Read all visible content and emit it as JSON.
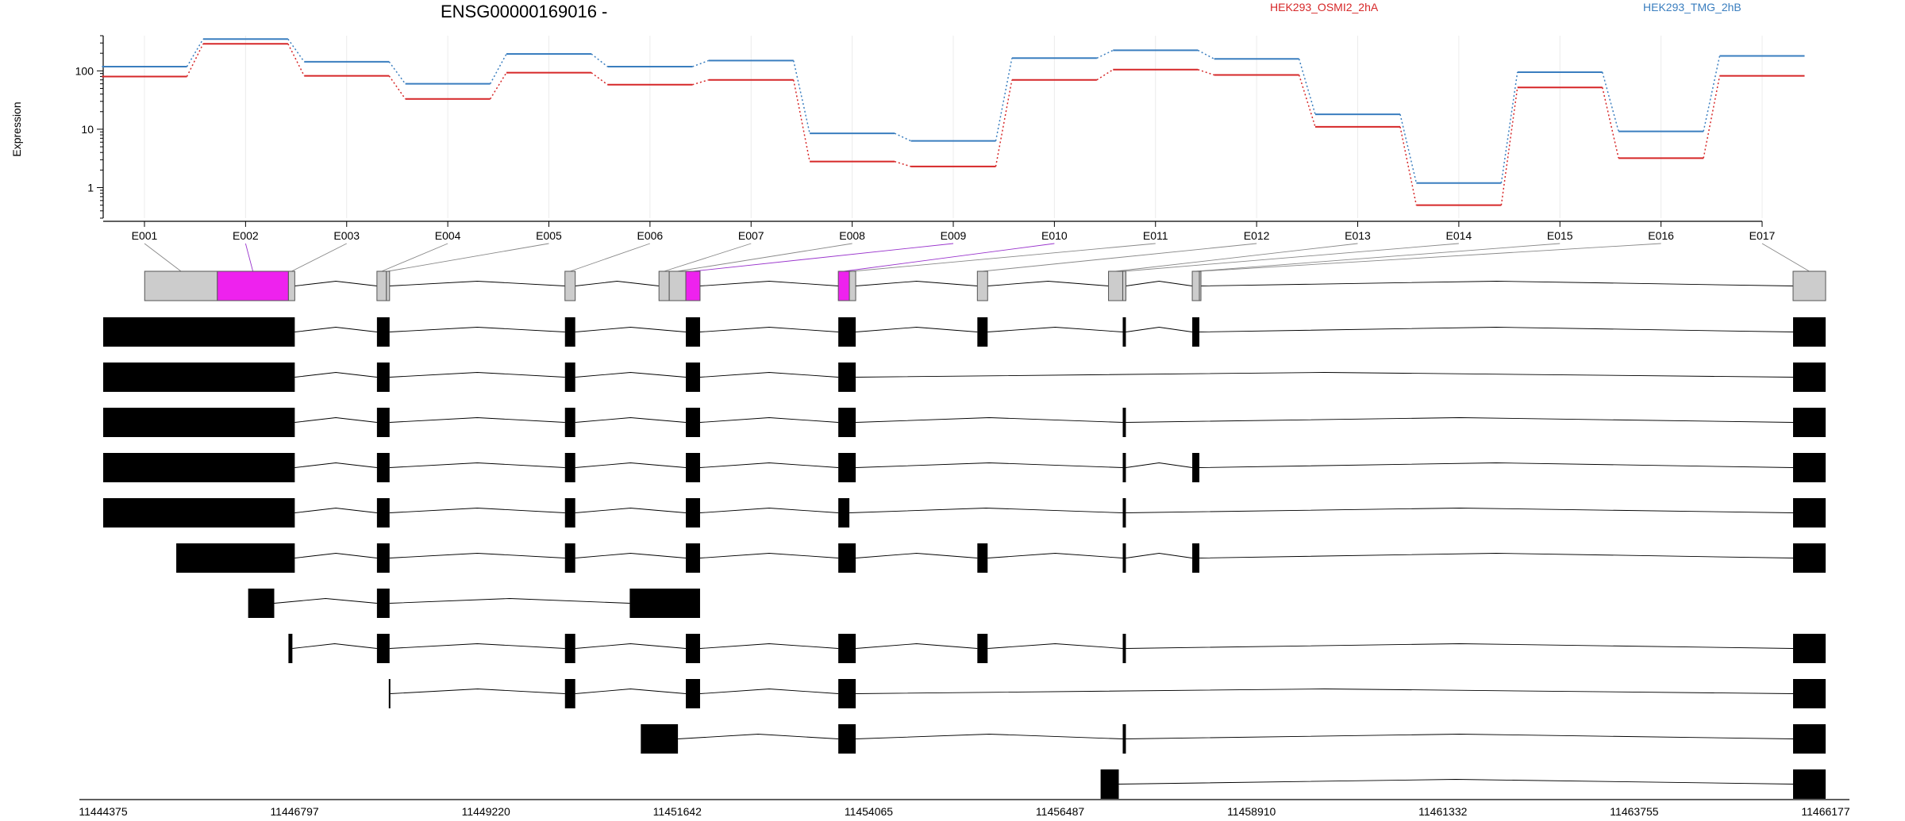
{
  "chart_data": {
    "type": "line",
    "title": "ENSG00000169016 -",
    "ylabel": "Expression",
    "xlabel": "",
    "yscale": "log",
    "ylim": [
      0.3,
      400
    ],
    "yticks": [
      1,
      10,
      100
    ],
    "ytick_labels": [
      "1",
      "10",
      "100"
    ],
    "grid": "vertical",
    "legend_position": "top",
    "categories": [
      "E001",
      "E002",
      "E003",
      "E004",
      "E005",
      "E006",
      "E007",
      "E008",
      "E009",
      "E010",
      "E011",
      "E012",
      "E013",
      "E014",
      "E015",
      "E016",
      "E017"
    ],
    "series": [
      {
        "name": "HEK293_OSMI2_2hA",
        "color": "#d62728",
        "values": [
          80,
          290,
          82,
          33,
          93,
          58,
          70,
          2.8,
          2.3,
          70,
          105,
          85,
          11,
          0.5,
          52,
          3.2,
          82
        ]
      },
      {
        "name": "HEK293_TMG_2hB",
        "color": "#3a7ebf",
        "values": [
          118,
          350,
          143,
          60,
          195,
          118,
          150,
          8.5,
          6.3,
          165,
          225,
          160,
          18,
          1.2,
          95,
          9.2,
          180
        ]
      }
    ],
    "gene_model": {
      "coordinate_labels": [
        "11444375",
        "11446797",
        "11449220",
        "11451642",
        "11454065",
        "11456487",
        "11458910",
        "11461332",
        "11463755",
        "11466177"
      ],
      "xlim": [
        11444375,
        11466177
      ],
      "highlight_color": "#ee22ee",
      "exon_color": "#cccccc",
      "transcript_color": "#000000",
      "exon_bins": [
        {
          "label": "E001",
          "start": 11444900,
          "end": 11445820,
          "highlight": false
        },
        {
          "label": "E002",
          "start": 11445820,
          "end": 11446720,
          "highlight": true
        },
        {
          "label": "E003",
          "start": 11446720,
          "end": 11446800,
          "highlight": false
        },
        {
          "label": "E004",
          "start": 11447840,
          "end": 11447960,
          "highlight": false
        },
        {
          "label": "E005",
          "start": 11447960,
          "end": 11448000,
          "highlight": false
        },
        {
          "label": "E006",
          "start": 11450220,
          "end": 11450350,
          "highlight": false
        },
        {
          "label": "E007",
          "start": 11451410,
          "end": 11451540,
          "highlight": false
        },
        {
          "label": "E008",
          "start": 11451540,
          "end": 11451750,
          "highlight": false
        },
        {
          "label": "E009",
          "start": 11451750,
          "end": 11451930,
          "highlight": true
        },
        {
          "label": "E010",
          "start": 11453680,
          "end": 11453820,
          "highlight": true
        },
        {
          "label": "E011",
          "start": 11453820,
          "end": 11453900,
          "highlight": false
        },
        {
          "label": "E012",
          "start": 11455440,
          "end": 11455570,
          "highlight": false
        },
        {
          "label": "E013",
          "start": 11457100,
          "end": 11457280,
          "highlight": false
        },
        {
          "label": "E014",
          "start": 11457280,
          "end": 11457320,
          "highlight": false
        },
        {
          "label": "E015",
          "start": 11458160,
          "end": 11458250,
          "highlight": false
        },
        {
          "label": "E016",
          "start": 11458250,
          "end": 11458260,
          "highlight": false
        },
        {
          "label": "E017",
          "start": 11465765,
          "end": 11466177,
          "highlight": false
        }
      ],
      "transcripts": [
        [
          [
            11444375,
            11446800
          ],
          [
            11447840,
            11448000
          ],
          [
            11450220,
            11450350
          ],
          [
            11451750,
            11451930
          ],
          [
            11453680,
            11453900
          ],
          [
            11455440,
            11455570
          ],
          [
            11457280,
            11457320
          ],
          [
            11458160,
            11458250
          ],
          [
            11465765,
            11466177
          ]
        ],
        [
          [
            11444375,
            11446800
          ],
          [
            11447840,
            11448000
          ],
          [
            11450220,
            11450350
          ],
          [
            11451750,
            11451930
          ],
          [
            11453680,
            11453900
          ],
          [
            11465765,
            11466177
          ]
        ],
        [
          [
            11444375,
            11446800
          ],
          [
            11447840,
            11448000
          ],
          [
            11450220,
            11450350
          ],
          [
            11451750,
            11451930
          ],
          [
            11453680,
            11453900
          ],
          [
            11457280,
            11457320
          ],
          [
            11465765,
            11466177
          ]
        ],
        [
          [
            11444375,
            11446800
          ],
          [
            11447840,
            11448000
          ],
          [
            11450220,
            11450350
          ],
          [
            11451750,
            11451930
          ],
          [
            11453680,
            11453900
          ],
          [
            11457280,
            11457320
          ],
          [
            11458160,
            11458250
          ],
          [
            11465765,
            11466177
          ]
        ],
        [
          [
            11444375,
            11446800
          ],
          [
            11447840,
            11448000
          ],
          [
            11450220,
            11450350
          ],
          [
            11451750,
            11451930
          ],
          [
            11453680,
            11453820
          ],
          [
            11457280,
            11457320
          ],
          [
            11465765,
            11466177
          ]
        ],
        [
          [
            11445300,
            11446800
          ],
          [
            11447840,
            11448000
          ],
          [
            11450220,
            11450350
          ],
          [
            11451750,
            11451930
          ],
          [
            11453680,
            11453900
          ],
          [
            11455440,
            11455570
          ],
          [
            11457280,
            11457320
          ],
          [
            11458160,
            11458250
          ],
          [
            11465765,
            11466177
          ]
        ],
        [
          [
            11446210,
            11446540
          ],
          [
            11447840,
            11448000
          ],
          [
            11451040,
            11451930
          ]
        ],
        [
          [
            11446720,
            11446770
          ],
          [
            11447840,
            11448000
          ],
          [
            11450220,
            11450350
          ],
          [
            11451750,
            11451930
          ],
          [
            11453680,
            11453900
          ],
          [
            11455440,
            11455570
          ],
          [
            11457280,
            11457320
          ],
          [
            11465765,
            11466177
          ]
        ],
        [
          [
            11447990,
            11448010
          ],
          [
            11450220,
            11450350
          ],
          [
            11451750,
            11451930
          ],
          [
            11453680,
            11453900
          ],
          [
            11465765,
            11466177
          ]
        ],
        [
          [
            11451180,
            11451650
          ],
          [
            11453680,
            11453900
          ],
          [
            11457280,
            11457320
          ],
          [
            11465765,
            11466177
          ]
        ],
        [
          [
            11457000,
            11457230
          ],
          [
            11465765,
            11466177
          ]
        ]
      ]
    }
  }
}
